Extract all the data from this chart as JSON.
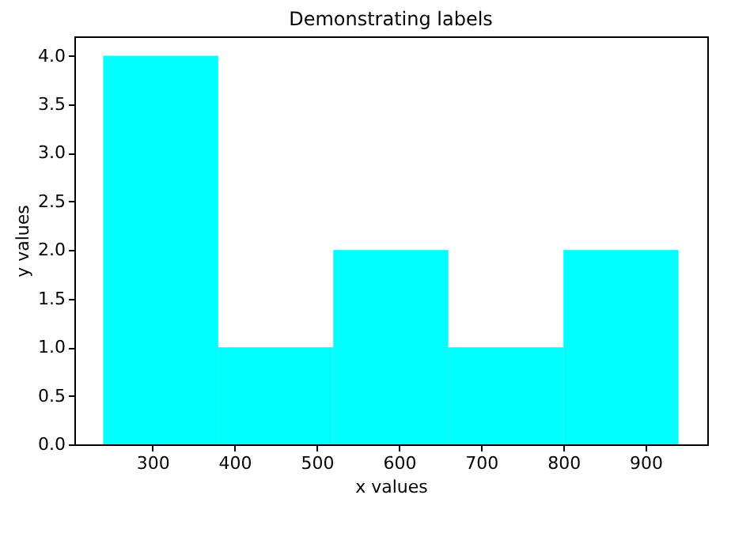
{
  "chart_data": {
    "type": "histogram",
    "title": "Demonstrating labels",
    "xlabel": "x values",
    "ylabel": "y values",
    "bins": [
      240,
      380,
      520,
      660,
      800,
      940
    ],
    "values": [
      4,
      1,
      2,
      1,
      2
    ],
    "color": "#00ffff",
    "xlim": [
      205,
      975
    ],
    "xticks": [
      300,
      400,
      500,
      600,
      700,
      800,
      900
    ],
    "ylim": [
      0,
      4.2
    ],
    "yticks": [
      {
        "value": 0,
        "label": "0.0"
      },
      {
        "value": 0.5,
        "label": "0.5"
      },
      {
        "value": 1,
        "label": "1.0"
      },
      {
        "value": 1.5,
        "label": "1.5"
      },
      {
        "value": 2,
        "label": "2.0"
      },
      {
        "value": 2.5,
        "label": "2.5"
      },
      {
        "value": 3,
        "label": "3.0"
      },
      {
        "value": 3.5,
        "label": "3.5"
      },
      {
        "value": 4,
        "label": "4.0"
      }
    ],
    "grid": false
  }
}
